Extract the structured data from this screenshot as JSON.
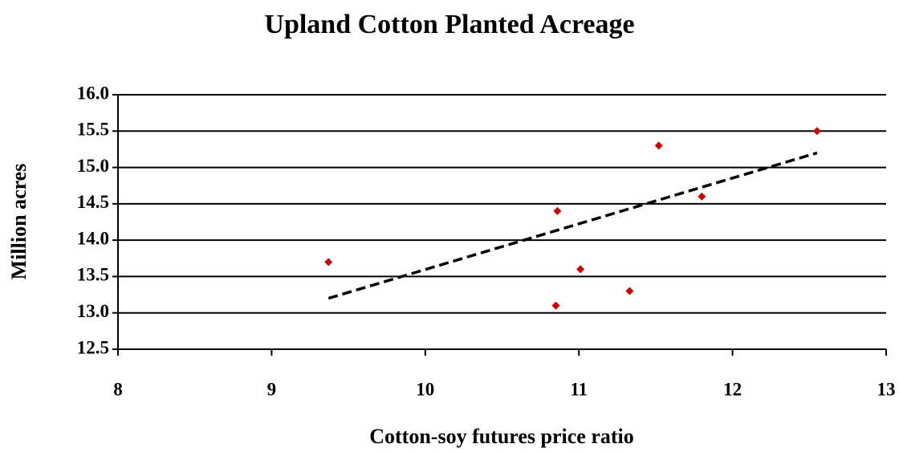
{
  "chart_data": {
    "type": "scatter",
    "title": "Upland Cotton Planted Acreage",
    "x_label": "Cotton-soy futures price ratio",
    "y_label": "Million acres",
    "series": [
      {
        "color": "#cc0000",
        "x": [
          9.37,
          10.86,
          10.85,
          11.01,
          11.33,
          11.52,
          11.8,
          12.55
        ],
        "values": [
          13.7,
          14.4,
          13.1,
          13.6,
          13.3,
          15.3,
          14.6,
          15.5
        ]
      }
    ],
    "trendline": {
      "color": "#000000",
      "x": [
        9.37,
        12.55
      ],
      "values": [
        13.2,
        15.2
      ]
    },
    "xlim": [
      8,
      13
    ],
    "xticks": [
      8,
      9,
      10,
      11,
      12,
      13
    ],
    "ylim": [
      12.5,
      16
    ],
    "yticks": [
      12.5,
      {
        "value": 13,
        "label": "13.0"
      },
      13.5,
      {
        "value": 14,
        "label": "14.0"
      },
      14.5,
      {
        "value": 15,
        "label": "15.0"
      },
      15.5,
      {
        "value": 16,
        "label": "16.0"
      }
    ],
    "grid": true
  }
}
